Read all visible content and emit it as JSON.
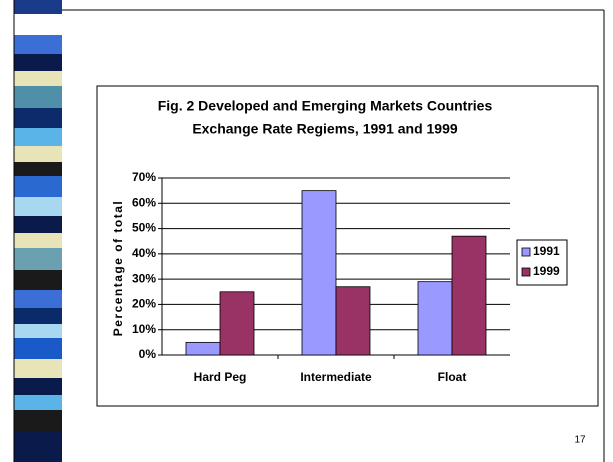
{
  "chart_data": {
    "type": "bar",
    "title": [
      "Fig. 2 Developed and Emerging Markets Countries",
      "Exchange Rate Regiems, 1991 and 1999"
    ],
    "y_label": "Percentage of total",
    "categories": [
      "Hard Peg",
      "Intermediate",
      "Float"
    ],
    "series": [
      {
        "name": "1991",
        "color": "#9999ff",
        "values": [
          5,
          65,
          29
        ]
      },
      {
        "name": "1999",
        "color": "#993366",
        "values": [
          25,
          27,
          47
        ]
      }
    ],
    "ylim": [
      0,
      70
    ],
    "yticks": [
      {
        "value": 0,
        "label": "0%"
      },
      {
        "value": 10,
        "label": "10%"
      },
      {
        "value": 20,
        "label": "20%"
      },
      {
        "value": 30,
        "label": "30%"
      },
      {
        "value": 40,
        "label": "40%"
      },
      {
        "value": 50,
        "label": "50%"
      },
      {
        "value": 60,
        "label": "60%"
      },
      {
        "value": 70,
        "label": "70%"
      }
    ],
    "grid": true,
    "legend": "right"
  },
  "page_number": "17"
}
